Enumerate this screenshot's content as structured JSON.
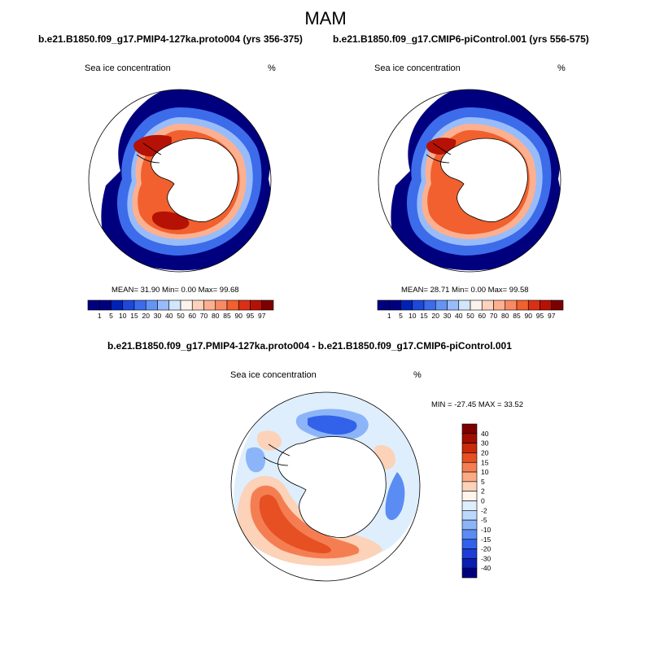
{
  "season": "MAM",
  "panels": [
    {
      "title": "b.e21.B1850.f09_g17.PMIP4-127ka.proto004 (yrs 356-375)",
      "variable": "Sea ice concentration",
      "units": "%",
      "stats": "MEAN=  31.90  Min=   0.00  Max=  99.68"
    },
    {
      "title": "b.e21.B1850.f09_g17.CMIP6-piControl.001 (yrs 556-575)",
      "variable": "Sea ice concentration",
      "units": "%",
      "stats": "MEAN=  28.71  Min=   0.00  Max=  99.58"
    }
  ],
  "diff": {
    "title": "b.e21.B1850.f09_g17.PMIP4-127ka.proto004 - b.e21.B1850.f09_g17.CMIP6-piControl.001",
    "variable": "Sea ice concentration",
    "units": "%",
    "minmax": "MIN = -27.45 MAX =  33.52"
  },
  "colors": {
    "concentration": [
      "#00007f",
      "#0022b4",
      "#1e48d8",
      "#3c6cea",
      "#6494f4",
      "#98bcfa",
      "#d2e6fc",
      "#fdf3ee",
      "#fcd2bc",
      "#fcb090",
      "#f98a64",
      "#f1602e",
      "#d93014",
      "#b51205",
      "#7d0000"
    ],
    "difference": [
      "#00007f",
      "#0a1eb2",
      "#1e3cd6",
      "#3262ea",
      "#5a8cf4",
      "#8cb4f8",
      "#bcd8fc",
      "#deeefd",
      "#fff5ec",
      "#fcd2b8",
      "#fbaa84",
      "#f47e52",
      "#e65022",
      "#c82a0a",
      "#a00e00",
      "#7d0000"
    ]
  },
  "chart_data": [
    {
      "type": "contour-map",
      "projection": "south-polar-stereographic",
      "title": "b.e21.B1850.f09_g17.PMIP4-127ka.proto004 (yrs 356-375)",
      "variable": "Sea ice concentration",
      "units": "%",
      "mean": 31.9,
      "min": 0.0,
      "max": 99.68,
      "contour_levels": [
        1,
        5,
        10,
        15,
        20,
        30,
        40,
        50,
        60,
        70,
        80,
        85,
        90,
        95,
        97
      ],
      "colorbar_tick_labels": [
        "1",
        "5",
        "10",
        "15",
        "20",
        "30",
        "40",
        "50",
        "60",
        "70",
        "80",
        "85",
        "90",
        "95",
        "97"
      ]
    },
    {
      "type": "contour-map",
      "projection": "south-polar-stereographic",
      "title": "b.e21.B1850.f09_g17.CMIP6-piControl.001 (yrs 556-575)",
      "variable": "Sea ice concentration",
      "units": "%",
      "mean": 28.71,
      "min": 0.0,
      "max": 99.58,
      "contour_levels": [
        1,
        5,
        10,
        15,
        20,
        30,
        40,
        50,
        60,
        70,
        80,
        85,
        90,
        95,
        97
      ],
      "colorbar_tick_labels": [
        "1",
        "5",
        "10",
        "15",
        "20",
        "30",
        "40",
        "50",
        "60",
        "70",
        "80",
        "85",
        "90",
        "95",
        "97"
      ]
    },
    {
      "type": "contour-map-difference",
      "projection": "south-polar-stereographic",
      "title": "b.e21.B1850.f09_g17.PMIP4-127ka.proto004 - b.e21.B1850.f09_g17.CMIP6-piControl.001",
      "variable": "Sea ice concentration",
      "units": "%",
      "min": -27.45,
      "max": 33.52,
      "contour_levels": [
        -40,
        -30,
        -20,
        -15,
        -10,
        -5,
        -2,
        0,
        2,
        5,
        10,
        15,
        20,
        30,
        40
      ],
      "colorbar_tick_labels": [
        "40",
        "30",
        "20",
        "15",
        "10",
        "5",
        "2",
        "0",
        "-2",
        "-5",
        "-10",
        "-15",
        "-20",
        "-30",
        "-40"
      ]
    }
  ]
}
